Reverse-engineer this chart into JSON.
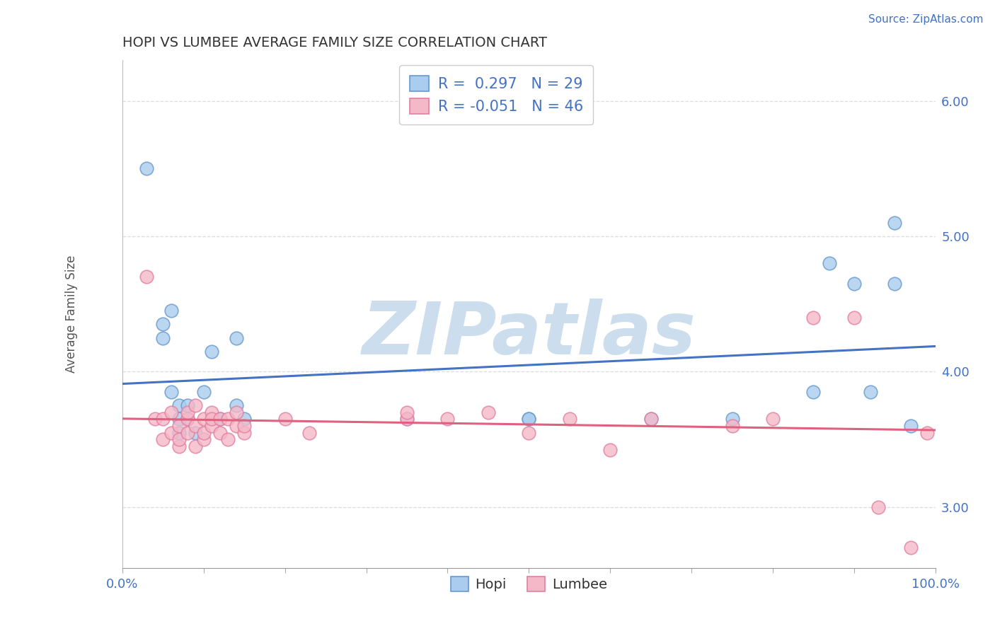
{
  "title": "HOPI VS LUMBEE AVERAGE FAMILY SIZE CORRELATION CHART",
  "source_text": "Source: ZipAtlas.com",
  "ylabel": "Average Family Size",
  "xlim": [
    0,
    100
  ],
  "ylim": [
    2.55,
    6.3
  ],
  "yticks": [
    3.0,
    4.0,
    5.0,
    6.0
  ],
  "xticks": [
    0,
    10,
    20,
    30,
    40,
    50,
    60,
    70,
    80,
    90,
    100
  ],
  "xticklabels_show": [
    "0.0%",
    "",
    "",
    "",
    "",
    "",
    "",
    "",
    "",
    "",
    "100.0%"
  ],
  "yticklabels": [
    "3.00",
    "4.00",
    "5.00",
    "6.00"
  ],
  "hopi_fill": "#aaccee",
  "lumbee_fill": "#f5b8c8",
  "hopi_edge": "#6699cc",
  "lumbee_edge": "#e080a0",
  "hopi_line": "#4472c4",
  "lumbee_line": "#e06080",
  "hopi_R": 0.297,
  "hopi_N": 29,
  "lumbee_R": -0.051,
  "lumbee_N": 46,
  "watermark": "ZIPatlas",
  "watermark_color": "#ccdded",
  "grid_color": "#dddddd",
  "title_color": "#333333",
  "source_color": "#4472c4",
  "ytick_color": "#4472c4",
  "xtick_color": "#4472c4",
  "legend_text_color": "#4472c4",
  "hopi_x": [
    3,
    5,
    5,
    6,
    6,
    7,
    7,
    7,
    8,
    8,
    9,
    10,
    11,
    12,
    14,
    14,
    15,
    35,
    50,
    50,
    65,
    75,
    85,
    87,
    90,
    92,
    95,
    95,
    97
  ],
  "hopi_y": [
    5.5,
    4.35,
    4.25,
    3.85,
    4.45,
    3.75,
    3.65,
    3.55,
    3.75,
    3.65,
    3.55,
    3.85,
    4.15,
    3.65,
    3.75,
    4.25,
    3.65,
    3.65,
    3.65,
    3.65,
    3.65,
    3.65,
    3.85,
    4.8,
    4.65,
    3.85,
    5.1,
    4.65,
    3.6
  ],
  "lumbee_x": [
    3,
    4,
    5,
    5,
    6,
    6,
    7,
    7,
    7,
    8,
    8,
    8,
    9,
    9,
    9,
    10,
    10,
    10,
    11,
    11,
    11,
    12,
    12,
    13,
    13,
    14,
    14,
    15,
    15,
    20,
    23,
    35,
    35,
    40,
    45,
    50,
    55,
    60,
    65,
    75,
    80,
    85,
    90,
    93,
    97,
    99
  ],
  "lumbee_y": [
    4.7,
    3.65,
    3.5,
    3.65,
    3.55,
    3.7,
    3.45,
    3.6,
    3.5,
    3.65,
    3.55,
    3.7,
    3.45,
    3.6,
    3.75,
    3.5,
    3.65,
    3.55,
    3.7,
    3.6,
    3.65,
    3.55,
    3.65,
    3.5,
    3.65,
    3.6,
    3.7,
    3.55,
    3.6,
    3.65,
    3.55,
    3.65,
    3.7,
    3.65,
    3.7,
    3.55,
    3.65,
    3.42,
    3.65,
    3.6,
    3.65,
    4.4,
    4.4,
    3.0,
    2.7,
    3.55
  ]
}
